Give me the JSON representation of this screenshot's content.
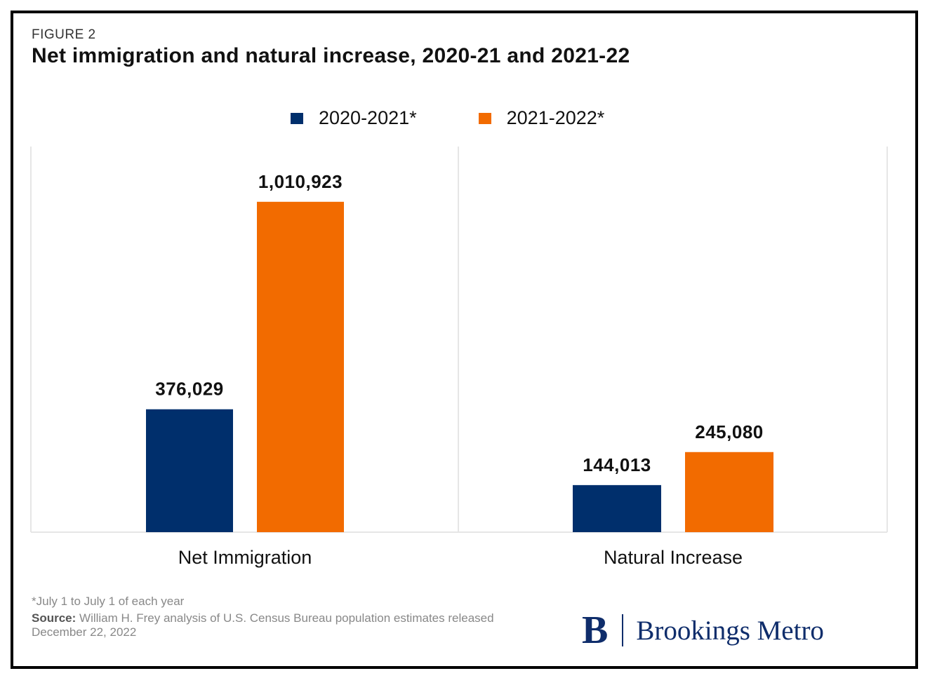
{
  "header": {
    "figure_label": "FIGURE 2",
    "title": "Net immigration and natural increase, 2020-21 and 2021-22"
  },
  "colors": {
    "series_1": "#002f6c",
    "series_2": "#f26b00",
    "panel_border": "#e6e6e6"
  },
  "chart_data": {
    "type": "bar",
    "title": "Net immigration and natural increase, 2020-21 and 2021-22",
    "categories": [
      "Net Immigration",
      "Natural Increase"
    ],
    "series": [
      {
        "name": "2020-2021*",
        "values": [
          376029,
          144013
        ],
        "value_labels": [
          "376,029",
          "144,013"
        ],
        "color": "#002f6c"
      },
      {
        "name": "2021-2022*",
        "values": [
          1010923,
          245080
        ],
        "value_labels": [
          "1,010,923",
          "245,080"
        ],
        "color": "#f26b00"
      }
    ],
    "xlabel": "",
    "ylabel": "",
    "ylim": [
      0,
      1180000
    ],
    "grid": false,
    "legend_position": "top-center"
  },
  "footer": {
    "footnote": "*July 1 to July 1 of each year",
    "source_label": "Source:",
    "source_text": " William H. Frey analysis of U.S. Census Bureau population estimates released December 22, 2022",
    "brand_mark": "B",
    "brand_name": "Brookings Metro"
  }
}
